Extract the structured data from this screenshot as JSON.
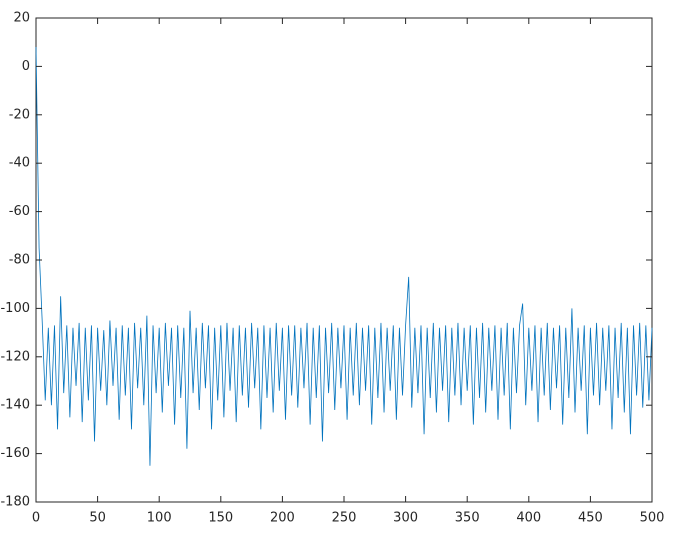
{
  "chart_data": {
    "type": "line",
    "x": [
      0,
      2.5,
      5,
      7.5,
      10,
      12.5,
      15,
      17.5,
      20,
      22.5,
      25,
      27.5,
      30,
      32.5,
      35,
      37.5,
      40,
      42.5,
      45,
      47.5,
      50,
      52.5,
      55,
      57.5,
      60,
      62.5,
      65,
      67.5,
      70,
      72.5,
      75,
      77.5,
      80,
      82.5,
      85,
      87.5,
      90,
      92.5,
      95,
      97.5,
      100,
      102.5,
      105,
      107.5,
      110,
      112.5,
      115,
      117.5,
      120,
      122.5,
      125,
      127.5,
      130,
      132.5,
      135,
      137.5,
      140,
      142.5,
      145,
      147.5,
      150,
      152.5,
      155,
      157.5,
      160,
      162.5,
      165,
      167.5,
      170,
      172.5,
      175,
      177.5,
      180,
      182.5,
      185,
      187.5,
      190,
      192.5,
      195,
      197.5,
      200,
      202.5,
      205,
      207.5,
      210,
      212.5,
      215,
      217.5,
      220,
      222.5,
      225,
      227.5,
      230,
      232.5,
      235,
      237.5,
      240,
      242.5,
      245,
      247.5,
      250,
      252.5,
      255,
      257.5,
      260,
      262.5,
      265,
      267.5,
      270,
      272.5,
      275,
      277.5,
      280,
      282.5,
      285,
      287.5,
      290,
      292.5,
      295,
      297.5,
      300,
      302.5,
      305,
      307.5,
      310,
      312.5,
      315,
      317.5,
      320,
      322.5,
      325,
      327.5,
      330,
      332.5,
      335,
      337.5,
      340,
      342.5,
      345,
      347.5,
      350,
      352.5,
      355,
      357.5,
      360,
      362.5,
      365,
      367.5,
      370,
      372.5,
      375,
      377.5,
      380,
      382.5,
      385,
      387.5,
      390,
      392.5,
      395,
      397.5,
      400,
      402.5,
      405,
      407.5,
      410,
      412.5,
      415,
      417.5,
      420,
      422.5,
      425,
      427.5,
      430,
      432.5,
      435,
      437.5,
      440,
      442.5,
      445,
      447.5,
      450,
      452.5,
      455,
      457.5,
      460,
      462.5,
      465,
      467.5,
      470,
      472.5,
      475,
      477.5,
      480,
      482.5,
      485,
      487.5,
      490,
      492.5,
      495,
      497.5,
      500
    ],
    "series": [
      {
        "color": "#0072bd",
        "values": [
          8,
          -75,
          -105,
          -138,
          -108,
          -140,
          -107,
          -150,
          -95,
          -135,
          -107,
          -145,
          -108,
          -132,
          -106,
          -147,
          -108,
          -138,
          -107,
          -155,
          -108,
          -134,
          -109,
          -140,
          -105,
          -132,
          -108,
          -146,
          -107,
          -136,
          -108,
          -150,
          -106,
          -133,
          -108,
          -140,
          -103,
          -165,
          -107,
          -135,
          -108,
          -143,
          -106,
          -132,
          -108,
          -148,
          -107,
          -137,
          -108,
          -158,
          -101,
          -135,
          -108,
          -142,
          -106,
          -133,
          -107,
          -150,
          -108,
          -138,
          -107,
          -145,
          -106,
          -134,
          -108,
          -147,
          -107,
          -136,
          -108,
          -141,
          -106,
          -133,
          -108,
          -150,
          -107,
          -137,
          -108,
          -143,
          -106,
          -134,
          -108,
          -146,
          -107,
          -136,
          -107,
          -141,
          -108,
          -133,
          -106,
          -148,
          -108,
          -137,
          -107,
          -155,
          -108,
          -135,
          -106,
          -142,
          -108,
          -133,
          -107,
          -146,
          -108,
          -136,
          -106,
          -140,
          -108,
          -134,
          -107,
          -148,
          -108,
          -137,
          -106,
          -143,
          -108,
          -134,
          -107,
          -146,
          -108,
          -136,
          -107,
          -87,
          -141,
          -108,
          -135,
          -107,
          -152,
          -108,
          -137,
          -106,
          -143,
          -108,
          -134,
          -107,
          -147,
          -108,
          -136,
          -106,
          -140,
          -108,
          -134,
          -107,
          -148,
          -108,
          -137,
          -106,
          -143,
          -108,
          -134,
          -107,
          -146,
          -108,
          -136,
          -106,
          -150,
          -108,
          -135,
          -107,
          -98,
          -140,
          -108,
          -134,
          -107,
          -147,
          -108,
          -136,
          -106,
          -142,
          -108,
          -133,
          -107,
          -148,
          -108,
          -137,
          -100,
          -143,
          -108,
          -134,
          -107,
          -152,
          -108,
          -136,
          -106,
          -140,
          -108,
          -134,
          -107,
          -150,
          -108,
          -137,
          -106,
          -143,
          -108,
          -152,
          -107,
          -136,
          -106,
          -141,
          -107,
          -138,
          -108
        ]
      }
    ],
    "xlim": [
      0,
      500
    ],
    "xticks": [
      0,
      50,
      100,
      150,
      200,
      250,
      300,
      350,
      400,
      450,
      500
    ],
    "ylim": [
      -180,
      20
    ],
    "yticks": [
      -180,
      -160,
      -140,
      -120,
      -100,
      -80,
      -60,
      -40,
      -20,
      0,
      20
    ]
  }
}
